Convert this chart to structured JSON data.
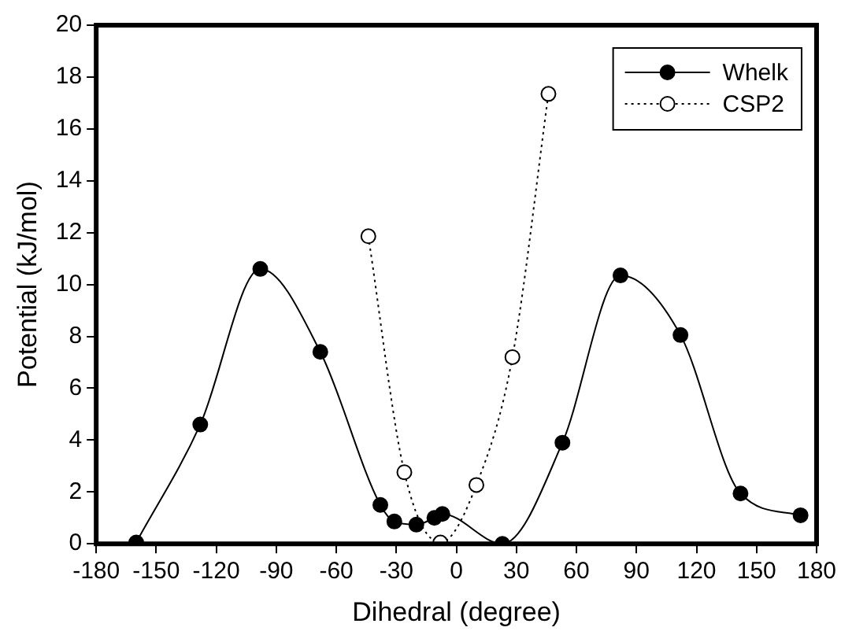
{
  "chart_data": {
    "type": "line",
    "xlabel": "Dihedral (degree)",
    "ylabel": "Potential (kJ/mol)",
    "xlim": [
      -180,
      180
    ],
    "xticks": [
      -180,
      -150,
      -120,
      -90,
      -60,
      -30,
      0,
      30,
      60,
      90,
      120,
      150,
      180
    ],
    "ylim": [
      0,
      20
    ],
    "yticks": [
      0,
      2,
      4,
      6,
      8,
      10,
      12,
      14,
      16,
      18,
      20
    ],
    "grid": false,
    "legend": "top right",
    "marker": "circle",
    "series": [
      {
        "name": "Whelk",
        "color": "#000000",
        "line_style": "solid",
        "x": [
          -160,
          -128,
          -98,
          -68,
          -38,
          -31,
          -20,
          -11,
          -7,
          23,
          53,
          82,
          112,
          142,
          172
        ],
        "values": [
          0.05,
          4.6,
          10.6,
          7.4,
          1.5,
          0.86,
          0.74,
          1.0,
          1.15,
          0,
          3.9,
          10.35,
          8.05,
          1.94,
          1.1
        ]
      },
      {
        "name": "CSP2",
        "color": "#000000",
        "line_style": "dotted",
        "x": [
          -44,
          -26,
          -8,
          10,
          28,
          46
        ],
        "values": [
          11.86,
          2.76,
          0.05,
          2.27,
          7.2,
          17.35
        ]
      }
    ]
  }
}
